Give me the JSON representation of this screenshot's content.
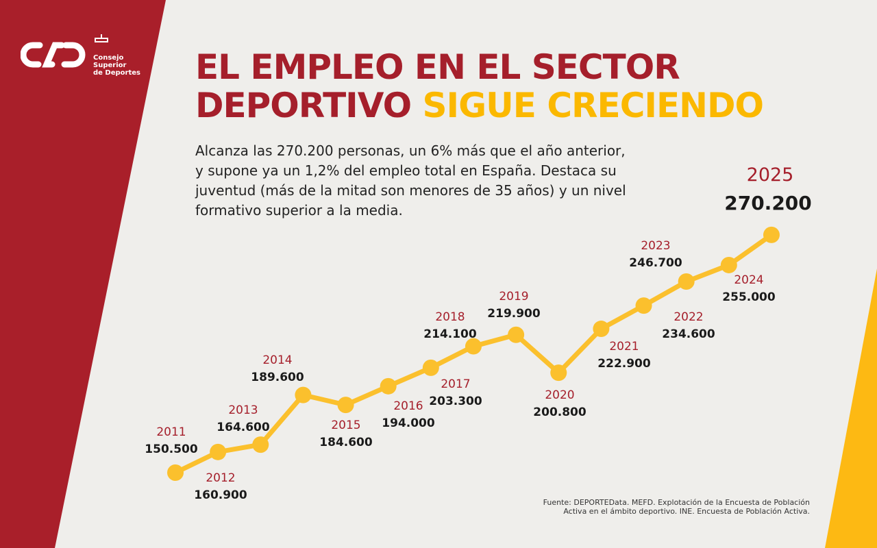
{
  "logo": {
    "brand": "CSD",
    "line1": "Consejo",
    "line2": "Superior",
    "line3": "de Deportes"
  },
  "title": {
    "line1": "EL EMPLEO EN EL SECTOR",
    "line2_a": "DEPORTIVO",
    "line2_b": "SIGUE CRECIENDO"
  },
  "description": "Alcanza las 270.200 personas, un 6% más que el año anterior, y supone ya un 1,2% del empleo total en España. Destaca su juventud (más de la mitad son menores de 35 años) y un nivel formativo superior a la media.",
  "source": {
    "line1": "Fuente: DEPORTEData. MEFD. Explotación de la Encuesta de Población",
    "line2": "Activa en el ámbito deportivo. INE. Encuesta de Población Activa."
  },
  "colors": {
    "red": "#a51f2b",
    "yellow": "#fbc02d",
    "text": "#1a1a1a"
  },
  "chart_data": {
    "type": "line",
    "categories": [
      "2011",
      "2012",
      "2013",
      "2014",
      "2015",
      "2016",
      "2017",
      "2018",
      "2019",
      "2020",
      "2021",
      "2022",
      "2023",
      "2024",
      "2025"
    ],
    "values": [
      150500,
      160900,
      164600,
      189600,
      184600,
      194000,
      203300,
      214100,
      219900,
      200800,
      222900,
      234600,
      246700,
      255000,
      270200
    ],
    "labels": [
      "150.500",
      "160.900",
      "164.600",
      "189.600",
      "184.600",
      "194.000",
      "203.300",
      "214.100",
      "219.900",
      "200.800",
      "222.900",
      "234.600",
      "246.700",
      "255.000",
      "270.200"
    ],
    "grid": false,
    "legend": "none"
  }
}
